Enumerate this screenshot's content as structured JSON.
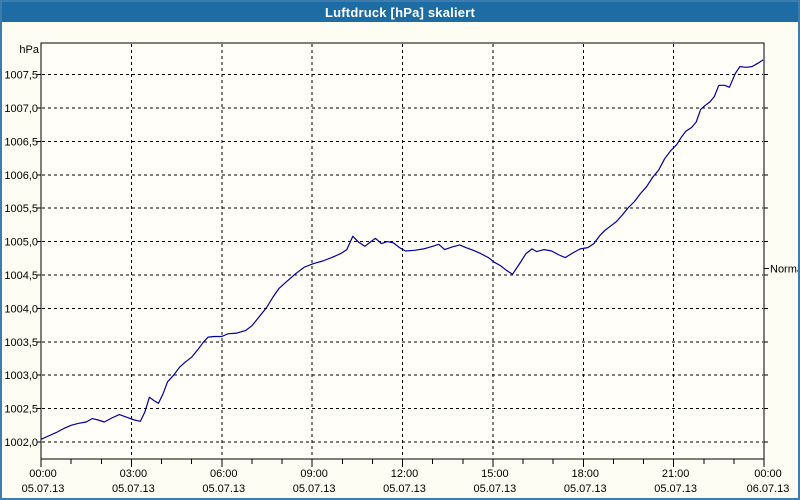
{
  "titlebar": {
    "text": "Luftdruck [hPa] skaliert"
  },
  "colors": {
    "titlebar_bg": "#1e6ca4",
    "titlebar_text": "#ffffff",
    "frame_border": "#3d7cae",
    "page_bg": "#fdfdf3",
    "plot_bg": "#fffef8",
    "grid": "#000000",
    "axis": "#000000",
    "line": "#0000a0",
    "label": "#000000"
  },
  "chart_data": {
    "type": "line",
    "title": "Luftdruck [hPa] skaliert",
    "ylabel": "hPa",
    "xlabel": "",
    "grid": "dashed",
    "legend_position": "none",
    "ylim": [
      1001.75,
      1008.0
    ],
    "xlim_hours": [
      0,
      24
    ],
    "x_minor_tick_hours": 1,
    "y_ticks": [
      {
        "value": 1002.0,
        "label": "1002,0"
      },
      {
        "value": 1002.5,
        "label": "1002,5"
      },
      {
        "value": 1003.0,
        "label": "1003,0"
      },
      {
        "value": 1003.5,
        "label": "1003,5"
      },
      {
        "value": 1004.0,
        "label": "1004,0"
      },
      {
        "value": 1004.5,
        "label": "1004,5"
      },
      {
        "value": 1005.0,
        "label": "1005,0"
      },
      {
        "value": 1005.5,
        "label": "1005,5"
      },
      {
        "value": 1006.0,
        "label": "1006,0"
      },
      {
        "value": 1006.5,
        "label": "1006,5"
      },
      {
        "value": 1007.0,
        "label": "1007,0"
      },
      {
        "value": 1007.5,
        "label": "1007,5"
      }
    ],
    "x_ticks": [
      {
        "hour": 0,
        "time": "00:00",
        "date": "05.07.13"
      },
      {
        "hour": 3,
        "time": "03:00",
        "date": "05.07.13"
      },
      {
        "hour": 6,
        "time": "06:00",
        "date": "05.07.13"
      },
      {
        "hour": 9,
        "time": "09:00",
        "date": "05.07.13"
      },
      {
        "hour": 12,
        "time": "12:00",
        "date": "05.07.13"
      },
      {
        "hour": 15,
        "time": "15:00",
        "date": "05.07.13"
      },
      {
        "hour": 18,
        "time": "18:00",
        "date": "05.07.13"
      },
      {
        "hour": 21,
        "time": "21:00",
        "date": "05.07.13"
      },
      {
        "hour": 24,
        "time": "00:00",
        "date": "06.07.13"
      }
    ],
    "right_axis_marker": {
      "label": "Normal",
      "value": 1004.6
    },
    "series": [
      {
        "name": "Luftdruck [hPa] skaliert",
        "color": "#0000a0",
        "points": [
          [
            0,
            1002.04
          ],
          [
            0.25,
            1002.09
          ],
          [
            0.5,
            1002.14
          ],
          [
            0.75,
            1002.2
          ],
          [
            1,
            1002.25
          ],
          [
            1.25,
            1002.28
          ],
          [
            1.5,
            1002.3
          ],
          [
            1.7,
            1002.35
          ],
          [
            1.9,
            1002.33
          ],
          [
            2.1,
            1002.3
          ],
          [
            2.35,
            1002.36
          ],
          [
            2.6,
            1002.41
          ],
          [
            2.85,
            1002.37
          ],
          [
            3.1,
            1002.33
          ],
          [
            3.3,
            1002.31
          ],
          [
            3.45,
            1002.45
          ],
          [
            3.6,
            1002.67
          ],
          [
            3.75,
            1002.62
          ],
          [
            3.9,
            1002.58
          ],
          [
            4.05,
            1002.72
          ],
          [
            4.2,
            1002.9
          ],
          [
            4.4,
            1003.0
          ],
          [
            4.6,
            1003.12
          ],
          [
            4.8,
            1003.2
          ],
          [
            5.0,
            1003.27
          ],
          [
            5.2,
            1003.38
          ],
          [
            5.4,
            1003.5
          ],
          [
            5.55,
            1003.57
          ],
          [
            5.75,
            1003.58
          ],
          [
            6.0,
            1003.58
          ],
          [
            6.2,
            1003.62
          ],
          [
            6.5,
            1003.63
          ],
          [
            6.8,
            1003.67
          ],
          [
            7.0,
            1003.74
          ],
          [
            7.2,
            1003.85
          ],
          [
            7.5,
            1004.02
          ],
          [
            7.7,
            1004.17
          ],
          [
            7.9,
            1004.3
          ],
          [
            8.15,
            1004.4
          ],
          [
            8.45,
            1004.52
          ],
          [
            8.75,
            1004.62
          ],
          [
            9.05,
            1004.67
          ],
          [
            9.35,
            1004.71
          ],
          [
            9.65,
            1004.76
          ],
          [
            9.95,
            1004.82
          ],
          [
            10.15,
            1004.88
          ],
          [
            10.35,
            1005.08
          ],
          [
            10.55,
            1004.99
          ],
          [
            10.75,
            1004.93
          ],
          [
            10.95,
            1005.0
          ],
          [
            11.1,
            1005.05
          ],
          [
            11.3,
            1004.97
          ],
          [
            11.5,
            1005.0
          ],
          [
            11.7,
            1004.98
          ],
          [
            11.9,
            1004.91
          ],
          [
            12.1,
            1004.86
          ],
          [
            12.4,
            1004.87
          ],
          [
            12.7,
            1004.89
          ],
          [
            13.0,
            1004.93
          ],
          [
            13.2,
            1004.96
          ],
          [
            13.4,
            1004.88
          ],
          [
            13.65,
            1004.92
          ],
          [
            13.9,
            1004.95
          ],
          [
            14.1,
            1004.91
          ],
          [
            14.35,
            1004.87
          ],
          [
            14.6,
            1004.82
          ],
          [
            14.85,
            1004.76
          ],
          [
            15.05,
            1004.69
          ],
          [
            15.25,
            1004.64
          ],
          [
            15.45,
            1004.57
          ],
          [
            15.65,
            1004.51
          ],
          [
            15.9,
            1004.68
          ],
          [
            16.1,
            1004.82
          ],
          [
            16.3,
            1004.89
          ],
          [
            16.45,
            1004.85
          ],
          [
            16.7,
            1004.88
          ],
          [
            16.95,
            1004.86
          ],
          [
            17.2,
            1004.8
          ],
          [
            17.4,
            1004.76
          ],
          [
            17.65,
            1004.83
          ],
          [
            17.9,
            1004.89
          ],
          [
            18.15,
            1004.91
          ],
          [
            18.35,
            1004.97
          ],
          [
            18.55,
            1005.09
          ],
          [
            18.7,
            1005.16
          ],
          [
            18.9,
            1005.23
          ],
          [
            19.1,
            1005.3
          ],
          [
            19.3,
            1005.4
          ],
          [
            19.5,
            1005.51
          ],
          [
            19.7,
            1005.6
          ],
          [
            19.9,
            1005.72
          ],
          [
            20.1,
            1005.82
          ],
          [
            20.3,
            1005.96
          ],
          [
            20.5,
            1006.07
          ],
          [
            20.7,
            1006.24
          ],
          [
            20.9,
            1006.36
          ],
          [
            21.1,
            1006.45
          ],
          [
            21.25,
            1006.56
          ],
          [
            21.4,
            1006.65
          ],
          [
            21.6,
            1006.71
          ],
          [
            21.75,
            1006.79
          ],
          [
            21.9,
            1006.98
          ],
          [
            22.05,
            1007.04
          ],
          [
            22.2,
            1007.09
          ],
          [
            22.35,
            1007.17
          ],
          [
            22.5,
            1007.34
          ],
          [
            22.7,
            1007.34
          ],
          [
            22.85,
            1007.31
          ],
          [
            23.05,
            1007.52
          ],
          [
            23.2,
            1007.62
          ],
          [
            23.4,
            1007.61
          ],
          [
            23.6,
            1007.62
          ],
          [
            23.8,
            1007.67
          ],
          [
            23.97,
            1007.72
          ]
        ]
      }
    ]
  }
}
